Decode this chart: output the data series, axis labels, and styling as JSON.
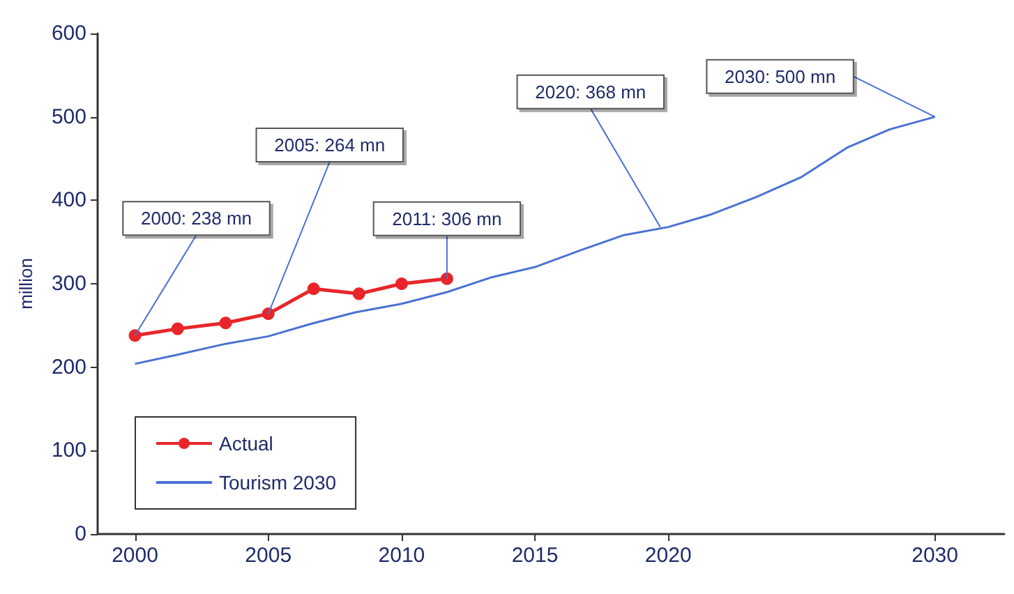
{
  "chart_data": {
    "type": "line",
    "ylabel": "million",
    "series": [
      {
        "name": "Actual",
        "color": "#e8262a",
        "marker": "circle",
        "x": [
          2000,
          2001.6,
          2003.4,
          2005,
          2006.7,
          2008.4,
          2010,
          2011.7
        ],
        "values": [
          238,
          246,
          253,
          264,
          294,
          288,
          300,
          306
        ]
      },
      {
        "name": "Tourism 2030",
        "color": "#4a72d4",
        "marker": "none",
        "x": [
          2000,
          2001.6,
          2003.4,
          2005,
          2006.6,
          2008.3,
          2010,
          2011.7,
          2013.4,
          2015,
          2016.7,
          2018.3,
          2020,
          2021.6,
          2023.3,
          2025,
          2026.7,
          2028.3,
          2030
        ],
        "values": [
          204,
          215,
          228,
          237,
          252,
          266,
          276,
          290,
          308,
          320,
          340,
          358,
          368,
          383,
          404,
          428,
          463,
          485,
          500
        ]
      }
    ],
    "annotations": [
      {
        "text": "2000: 238 mn",
        "x": 2000,
        "y": 238
      },
      {
        "text": "2005: 264 mn",
        "x": 2005,
        "y": 264
      },
      {
        "text": "2011: 306 mn",
        "x": 2011.7,
        "y": 306
      },
      {
        "text": "2020: 368 mn",
        "x": 2019.7,
        "y": 368
      },
      {
        "text": "2030: 500 mn",
        "x": 2030,
        "y": 500
      }
    ],
    "xlim": [
      1998.6,
      2032.6
    ],
    "xticks": [
      2000,
      2005,
      2010,
      2015,
      2020,
      2030
    ],
    "ylim": [
      0,
      600
    ],
    "yticks": [
      0,
      100,
      200,
      300,
      400,
      500,
      600
    ],
    "grid": false,
    "legend": "bottom left"
  }
}
